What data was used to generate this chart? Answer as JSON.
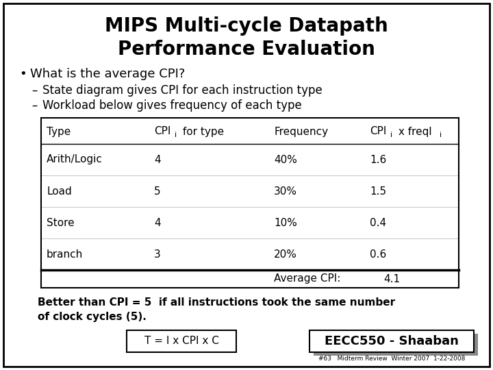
{
  "title_line1": "MIPS Multi-cycle Datapath",
  "title_line2": "Performance Evaluation",
  "bullet": "What is the average CPI?",
  "sub1": "State diagram gives CPI for each instruction type",
  "sub2": "Workload below gives frequency of each type",
  "table_rows": [
    [
      "Arith/Logic",
      "4",
      "40%",
      "1.6"
    ],
    [
      "Load",
      "5",
      "30%",
      "1.5"
    ],
    [
      "Store",
      "4",
      "10%",
      "0.4"
    ],
    [
      "branch",
      "3",
      "20%",
      "0.6"
    ]
  ],
  "avg_label": "Average CPI:",
  "avg_value": "4.1",
  "bottom_text1": "Better than CPI = 5  if all instructions took the same number",
  "bottom_text2": "of clock cycles (5).",
  "formula_box": "T = I x CPI x C",
  "credit_box": "EECC550 - Shaaban",
  "credit_small": "#63   Midterm Review  Winter 2007  1-22-2008",
  "bg_color": "#ffffff",
  "border_color": "#000000",
  "text_color": "#000000"
}
